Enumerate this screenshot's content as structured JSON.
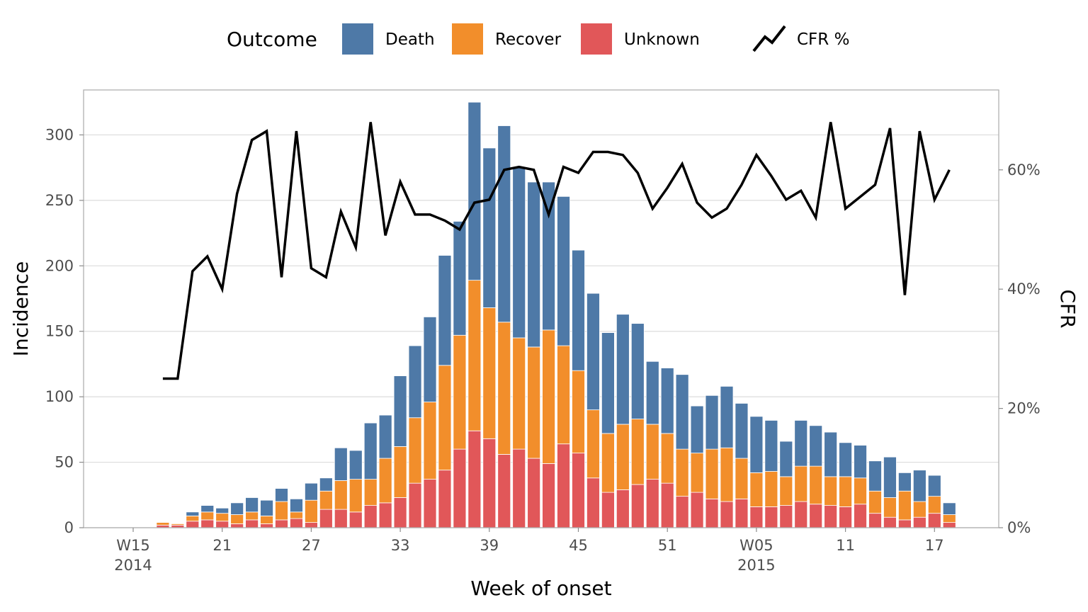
{
  "chart_data": {
    "type": "bar",
    "stacked": true,
    "x_unit": "ISO week of onset",
    "weeks": [
      "2014-W17",
      "2014-W18",
      "2014-W19",
      "2014-W20",
      "2014-W21",
      "2014-W22",
      "2014-W23",
      "2014-W24",
      "2014-W25",
      "2014-W26",
      "2014-W27",
      "2014-W28",
      "2014-W29",
      "2014-W30",
      "2014-W31",
      "2014-W32",
      "2014-W33",
      "2014-W34",
      "2014-W35",
      "2014-W36",
      "2014-W37",
      "2014-W38",
      "2014-W39",
      "2014-W40",
      "2014-W41",
      "2014-W42",
      "2014-W43",
      "2014-W44",
      "2014-W45",
      "2014-W46",
      "2014-W47",
      "2014-W48",
      "2014-W49",
      "2014-W50",
      "2014-W51",
      "2014-W52",
      "2015-W01",
      "2015-W02",
      "2015-W03",
      "2015-W04",
      "2015-W05",
      "2015-W06",
      "2015-W07",
      "2015-W08",
      "2015-W09",
      "2015-W10",
      "2015-W11",
      "2015-W12",
      "2015-W13",
      "2015-W14",
      "2015-W15",
      "2015-W16",
      "2015-W17",
      "2015-W18"
    ],
    "series": [
      {
        "name": "Unknown",
        "color": "#e15759",
        "values": [
          2,
          2,
          5,
          6,
          5,
          3,
          6,
          3,
          6,
          7,
          4,
          14,
          14,
          12,
          17,
          19,
          23,
          34,
          37,
          44,
          60,
          74,
          68,
          56,
          60,
          53,
          49,
          64,
          57,
          38,
          27,
          29,
          33,
          37,
          34,
          24,
          27,
          22,
          20,
          22,
          16,
          16,
          17,
          20,
          18,
          17,
          16,
          18,
          11,
          8,
          6,
          8,
          11,
          4
        ]
      },
      {
        "name": "Recover",
        "color": "#f28e2b",
        "values": [
          2,
          1,
          4,
          6,
          6,
          7,
          6,
          6,
          14,
          5,
          17,
          14,
          22,
          25,
          20,
          34,
          39,
          50,
          59,
          80,
          87,
          115,
          100,
          101,
          85,
          85,
          102,
          75,
          63,
          52,
          45,
          50,
          50,
          42,
          38,
          36,
          30,
          38,
          41,
          31,
          26,
          27,
          22,
          27,
          29,
          22,
          23,
          20,
          17,
          15,
          22,
          12,
          13,
          6
        ]
      },
      {
        "name": "Death",
        "color": "#4e79a7",
        "values": [
          0,
          0,
          3,
          5,
          4,
          9,
          11,
          12,
          10,
          10,
          13,
          10,
          25,
          22,
          43,
          33,
          54,
          55,
          65,
          84,
          87,
          136,
          122,
          150,
          130,
          126,
          113,
          114,
          92,
          89,
          77,
          84,
          73,
          48,
          50,
          57,
          36,
          41,
          47,
          42,
          43,
          39,
          27,
          35,
          31,
          34,
          26,
          25,
          23,
          31,
          14,
          24,
          16,
          9
        ]
      }
    ],
    "cfr_percent": [
      25,
      25,
      43,
      45.5,
      40,
      56,
      65,
      66.5,
      42,
      66.5,
      43.5,
      42,
      53,
      47,
      68,
      49,
      58,
      52.5,
      52.5,
      51.5,
      50,
      54.5,
      55,
      60,
      60.5,
      60,
      52.5,
      60.5,
      59.5,
      63,
      63,
      62.5,
      59.5,
      53.5,
      57,
      61,
      54.5,
      52,
      53.5,
      57.5,
      62.5,
      59,
      55,
      56.5,
      52,
      68,
      53.5,
      55.5,
      57.5,
      67,
      39,
      66.5,
      55,
      60
    ],
    "xlabel": "Week of onset",
    "ylabel": "Incidence",
    "y2label": "CFR",
    "ylim": [
      0,
      330
    ],
    "y2lim": [
      0,
      70
    ],
    "yticks": [
      0,
      50,
      100,
      150,
      200,
      250,
      300
    ],
    "y2ticks": [
      "0%",
      "20%",
      "40%",
      "60%"
    ],
    "xticks": [
      {
        "label": "W15",
        "sublabel": "2014",
        "week": "2014-W15"
      },
      {
        "label": "21",
        "sublabel": "",
        "week": "2014-W21"
      },
      {
        "label": "27",
        "sublabel": "",
        "week": "2014-W27"
      },
      {
        "label": "33",
        "sublabel": "",
        "week": "2014-W33"
      },
      {
        "label": "39",
        "sublabel": "",
        "week": "2014-W39"
      },
      {
        "label": "45",
        "sublabel": "",
        "week": "2014-W45"
      },
      {
        "label": "51",
        "sublabel": "",
        "week": "2014-W51"
      },
      {
        "label": "W05",
        "sublabel": "2015",
        "week": "2015-W05"
      },
      {
        "label": "11",
        "sublabel": "",
        "week": "2015-W11"
      },
      {
        "label": "17",
        "sublabel": "",
        "week": "2015-W17"
      }
    ],
    "legend": {
      "position": "top",
      "title": "Outcome",
      "items": [
        {
          "label": "Death",
          "color": "#4e79a7"
        },
        {
          "label": "Recover",
          "color": "#f28e2b"
        },
        {
          "label": "Unknown",
          "color": "#e15759"
        }
      ],
      "line_label": "CFR %"
    },
    "grid": true,
    "line_color": "#000000"
  }
}
